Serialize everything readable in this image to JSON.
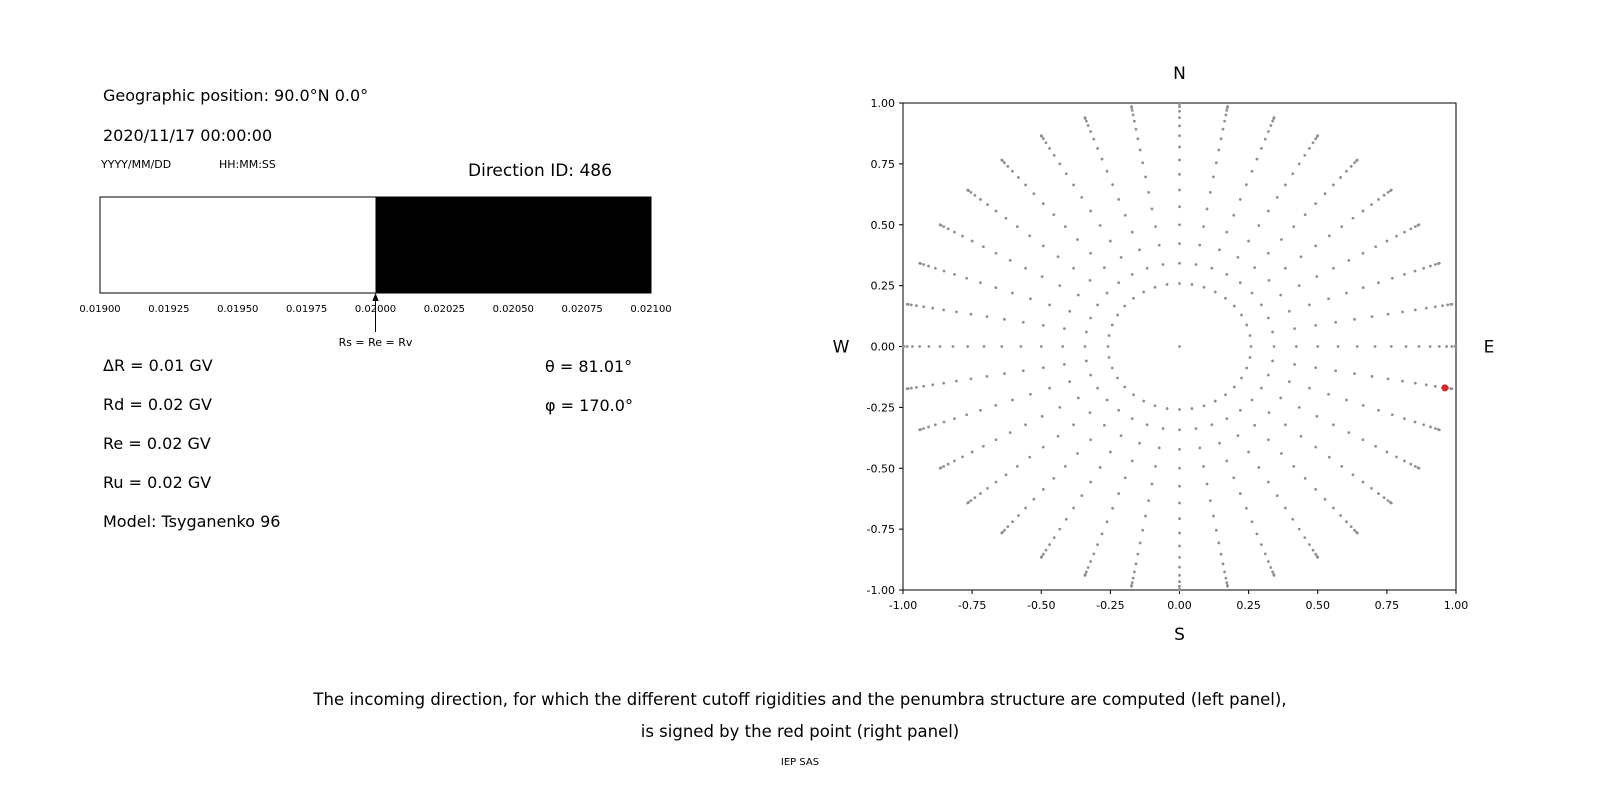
{
  "left_panel": {
    "geo_position": "Geographic position: 90.0°N 0.0°",
    "datetime": "2020/11/17 00:00:00",
    "date_format_hint": "YYYY/MM/DD",
    "time_format_hint": "HH:MM:SS",
    "direction_id": "Direction ID: 486",
    "params": {
      "delta_r": "ΔR = 0.01 GV",
      "rd": "Rd = 0.02 GV",
      "re": "Re = 0.02 GV",
      "ru": "Ru = 0.02 GV",
      "model": "Model: Tsyganenko 96"
    },
    "theta": "θ = 81.01°",
    "phi": "φ = 170.0°"
  },
  "caption": {
    "line1": "The incoming direction, for which the different cutoff rigidities and the penumbra structure are computed (left panel),",
    "line2": "is signed by the red point (right panel)",
    "credit": "IEP SAS"
  },
  "chart_data": [
    {
      "type": "bar",
      "name": "penumbra-structure",
      "xlim": [
        0.019,
        0.021
      ],
      "segments": [
        {
          "x0": 0.019,
          "x1": 0.02,
          "color": "#ffffff"
        },
        {
          "x0": 0.02,
          "x1": 0.021,
          "color": "#000000"
        }
      ],
      "xticks": [
        "0.01900",
        "0.01925",
        "0.01950",
        "0.01975",
        "0.02000",
        "0.02025",
        "0.02050",
        "0.02075",
        "0.02100"
      ],
      "annotation": {
        "x": 0.02,
        "label": "Rs = Re = Rv"
      }
    },
    {
      "type": "scatter",
      "name": "incoming-direction-grid",
      "xlim": [
        -1.0,
        1.0
      ],
      "ylim": [
        -1.0,
        1.0
      ],
      "xticks": [
        "-1.00",
        "-0.75",
        "-0.50",
        "-0.25",
        "0.00",
        "0.25",
        "0.50",
        "0.75",
        "1.00"
      ],
      "yticks": [
        "1.00",
        "0.75",
        "0.50",
        "0.25",
        "0.00",
        "-0.25",
        "-0.50",
        "-0.75",
        "-1.00"
      ],
      "compass": {
        "north": "N",
        "south": "S",
        "east": "E",
        "west": "W"
      },
      "grid_points": {
        "azimuth_step_deg": 10,
        "zenith_min_deg": 15,
        "zenith_max_deg": 90,
        "zenith_step_deg": 5,
        "include_center": true,
        "marker_color": "#909090",
        "marker_radius": 1.4
      },
      "selected_point": {
        "x": 0.96,
        "y": -0.17,
        "color": "#d62728",
        "radius": 3.5
      }
    }
  ]
}
